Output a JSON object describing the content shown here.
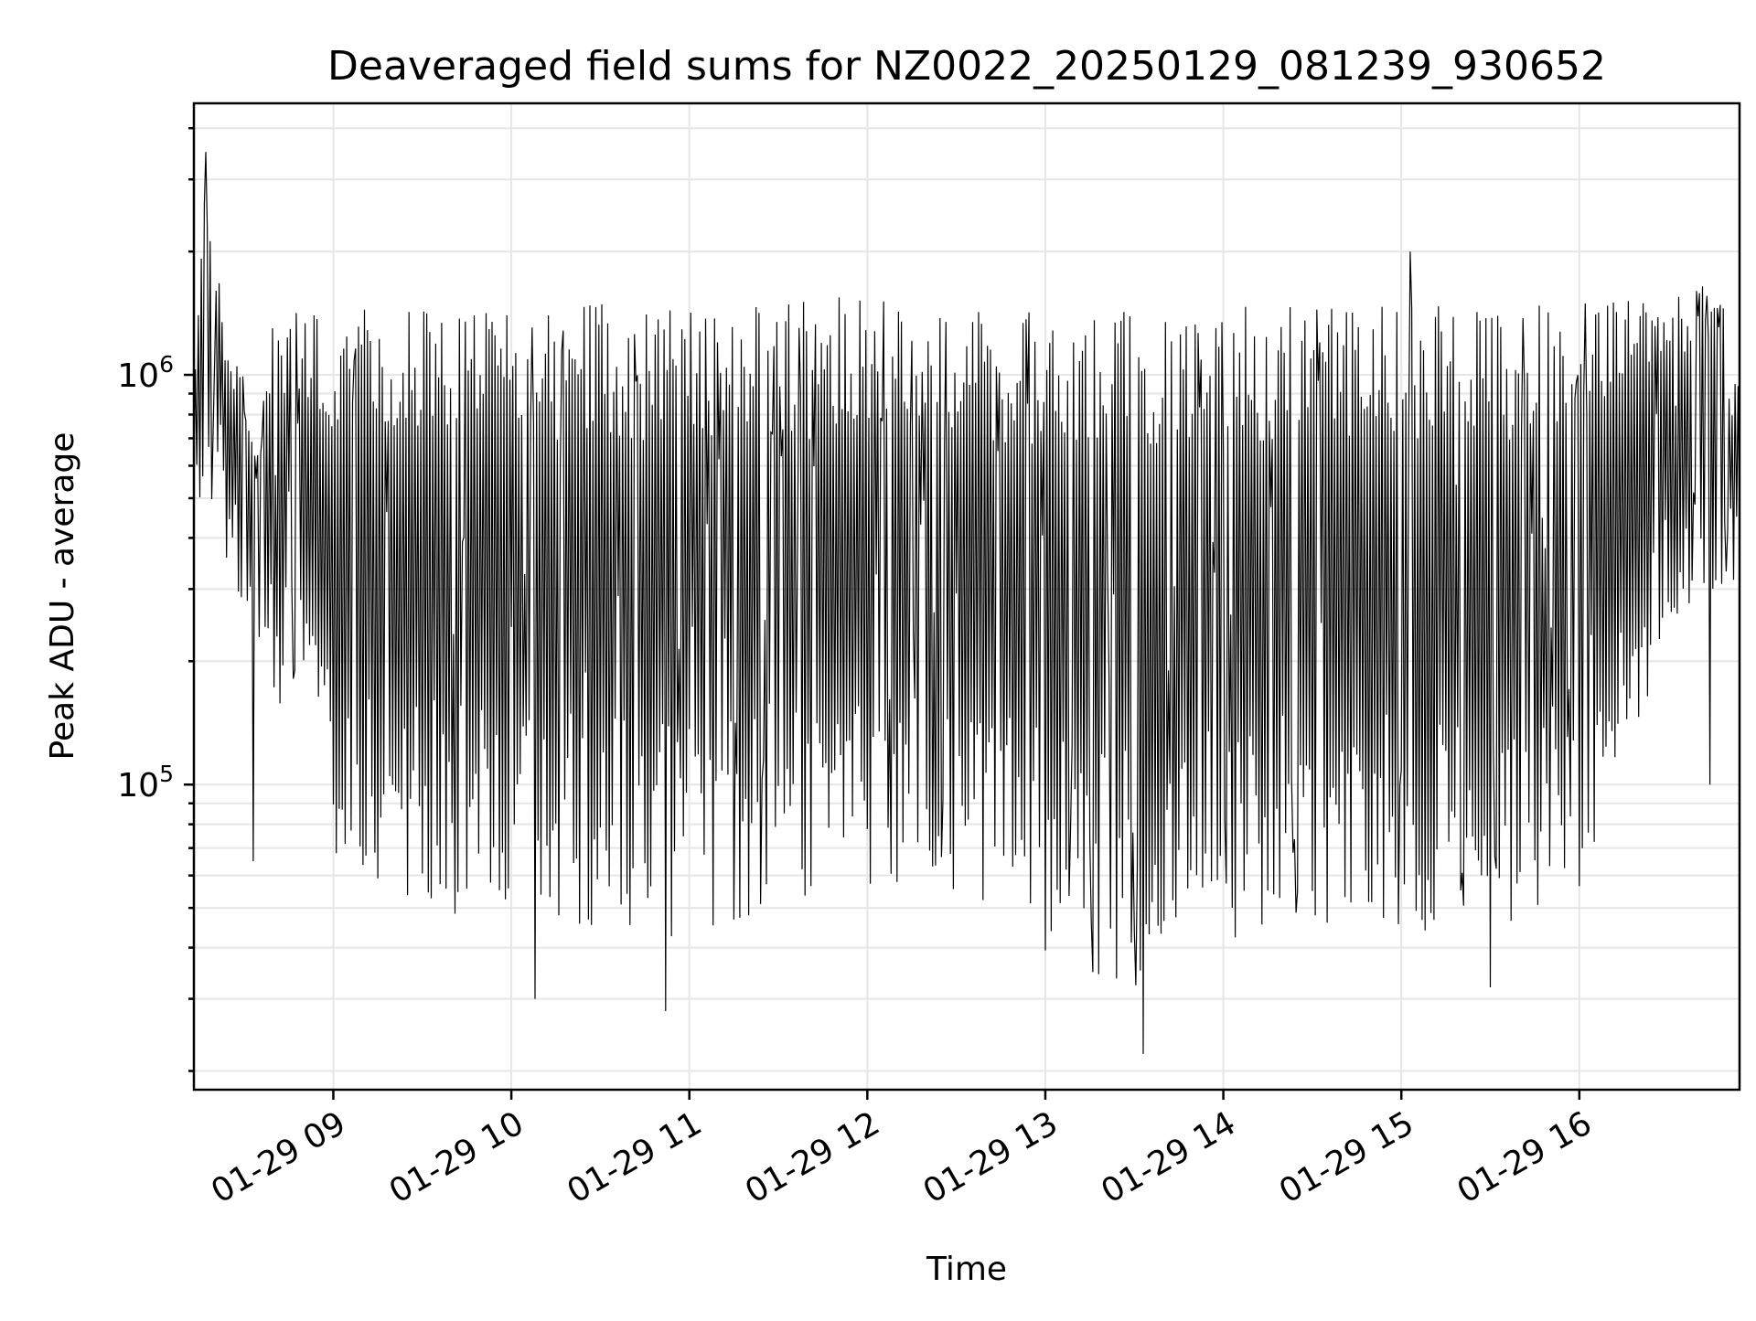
{
  "chart_data": {
    "type": "line",
    "title": "Deaveraged field sums for NZ0022_20250129_081239_930652",
    "xlabel": "Time",
    "ylabel": "Peak ADU - average",
    "x_axis": {
      "kind": "datetime",
      "range": [
        "2025-01-29 08:13",
        "2025-01-29 16:54"
      ],
      "ticks": [
        "2025-01-29 09:00",
        "2025-01-29 10:00",
        "2025-01-29 11:00",
        "2025-01-29 12:00",
        "2025-01-29 13:00",
        "2025-01-29 14:00",
        "2025-01-29 15:00",
        "2025-01-29 16:00"
      ],
      "tick_labels": [
        "01-29 09",
        "01-29 10",
        "01-29 11",
        "01-29 12",
        "01-29 13",
        "01-29 14",
        "01-29 15",
        "01-29 16"
      ],
      "tick_label_rotation": 30
    },
    "y_axis": {
      "scale": "log",
      "range": [
        18000,
        4600000
      ],
      "ticks": [
        100000,
        1000000
      ],
      "tick_labels": [
        {
          "base": "10",
          "exp": "5"
        },
        {
          "base": "10",
          "exp": "6"
        }
      ],
      "minor_ticks": [
        20000,
        30000,
        40000,
        50000,
        60000,
        70000,
        80000,
        90000,
        200000,
        300000,
        400000,
        500000,
        600000,
        700000,
        800000,
        900000,
        2000000,
        3000000,
        4000000
      ]
    },
    "grid": true,
    "series": [
      {
        "color": "#000000",
        "sampling": "about 2 samples per minute; oscillates rapidly between a lower envelope and an upper envelope",
        "envelope": [
          {
            "time": "2025-01-29 08:13",
            "low": 450000,
            "high": 1100000
          },
          {
            "time": "2025-01-29 08:17",
            "low": 400000,
            "high": 3500000
          },
          {
            "time": "2025-01-29 08:25",
            "low": 350000,
            "high": 1200000
          },
          {
            "time": "2025-01-29 08:30",
            "low": 260000,
            "high": 1000000
          },
          {
            "time": "2025-01-29 08:35",
            "low": 200000,
            "high": 720000
          },
          {
            "time": "2025-01-29 08:40",
            "low": 160000,
            "high": 1500000
          },
          {
            "time": "2025-01-29 08:50",
            "low": 120000,
            "high": 1500000
          },
          {
            "time": "2025-01-29 09:00",
            "low": 60000,
            "high": 1500000
          },
          {
            "time": "2025-01-29 09:30",
            "low": 50000,
            "high": 1500000
          },
          {
            "time": "2025-01-29 10:00",
            "low": 45000,
            "high": 1450000
          },
          {
            "time": "2025-01-29 10:30",
            "low": 45000,
            "high": 1500000
          },
          {
            "time": "2025-01-29 11:00",
            "low": 42000,
            "high": 1500000
          },
          {
            "time": "2025-01-29 11:30",
            "low": 48000,
            "high": 1550000
          },
          {
            "time": "2025-01-29 12:00",
            "low": 55000,
            "high": 1600000
          },
          {
            "time": "2025-01-29 12:30",
            "low": 55000,
            "high": 1450000
          },
          {
            "time": "2025-01-29 13:00",
            "low": 38000,
            "high": 1450000
          },
          {
            "time": "2025-01-29 13:30",
            "low": 32000,
            "high": 1500000
          },
          {
            "time": "2025-01-29 14:00",
            "low": 40000,
            "high": 1500000
          },
          {
            "time": "2025-01-29 14:30",
            "low": 45000,
            "high": 1500000
          },
          {
            "time": "2025-01-29 15:00",
            "low": 45000,
            "high": 1500000
          },
          {
            "time": "2025-01-29 15:30",
            "low": 40000,
            "high": 1450000
          },
          {
            "time": "2025-01-29 16:00",
            "low": 55000,
            "high": 1500000
          },
          {
            "time": "2025-01-29 16:15",
            "low": 100000,
            "high": 1550000
          },
          {
            "time": "2025-01-29 16:30",
            "low": 250000,
            "high": 1650000
          },
          {
            "time": "2025-01-29 16:45",
            "low": 300000,
            "high": 1700000
          },
          {
            "time": "2025-01-29 16:54",
            "low": 280000,
            "high": 1150000
          }
        ],
        "notable_points": [
          {
            "time": "2025-01-29 08:17",
            "value": 3500000
          },
          {
            "time": "2025-01-29 08:33",
            "value": 65000
          },
          {
            "time": "2025-01-29 10:08",
            "value": 30000
          },
          {
            "time": "2025-01-29 10:52",
            "value": 28000
          },
          {
            "time": "2025-01-29 13:33",
            "value": 22000
          },
          {
            "time": "2025-01-29 15:03",
            "value": 2000000
          },
          {
            "time": "2025-01-29 15:30",
            "value": 32000
          },
          {
            "time": "2025-01-29 16:44",
            "value": 100000
          }
        ]
      }
    ]
  }
}
